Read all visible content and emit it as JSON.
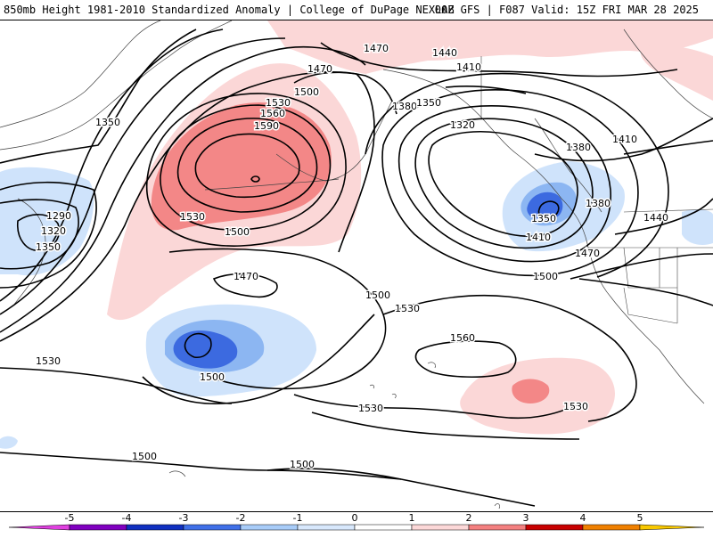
{
  "header": {
    "left_title": "850mb Height 1981-2010 Standardized Anomaly | College of DuPage NEXLAB",
    "right_title": "00Z GFS | F087 Valid: 15Z FRI MAR 28 2025"
  },
  "contour_labels": [
    {
      "id": "c1470a",
      "text": "1470"
    },
    {
      "id": "c1440a",
      "text": "1440"
    },
    {
      "id": "c1410a",
      "text": "1410"
    },
    {
      "id": "c1470b",
      "text": "1470"
    },
    {
      "id": "c1500a",
      "text": "1500"
    },
    {
      "id": "c1530a",
      "text": "1530"
    },
    {
      "id": "c1560a",
      "text": "1560"
    },
    {
      "id": "c1590a",
      "text": "1590"
    },
    {
      "id": "c1380a",
      "text": "1380"
    },
    {
      "id": "c1350a",
      "text": "1350"
    },
    {
      "id": "c1320a",
      "text": "1320"
    },
    {
      "id": "c1380b",
      "text": "1380"
    },
    {
      "id": "c1410b",
      "text": "1410"
    },
    {
      "id": "c1350b",
      "text": "1350"
    },
    {
      "id": "c1380c",
      "text": "1380"
    },
    {
      "id": "c1440b",
      "text": "1440"
    },
    {
      "id": "c1410c",
      "text": "1410"
    },
    {
      "id": "c1470c",
      "text": "1470"
    },
    {
      "id": "c1350c",
      "text": "1350"
    },
    {
      "id": "c1290a",
      "text": "1290"
    },
    {
      "id": "c1320b",
      "text": "1320"
    },
    {
      "id": "c1350d",
      "text": "1350"
    },
    {
      "id": "c1530b",
      "text": "1530"
    },
    {
      "id": "c1500b",
      "text": "1500"
    },
    {
      "id": "c1470d",
      "text": "1470"
    },
    {
      "id": "c1500c",
      "text": "1500"
    },
    {
      "id": "c1500d",
      "text": "1500"
    },
    {
      "id": "c1530c",
      "text": "1530"
    },
    {
      "id": "c1560b",
      "text": "1560"
    },
    {
      "id": "c1530d",
      "text": "1530"
    },
    {
      "id": "c1500e",
      "text": "1500"
    },
    {
      "id": "c1530e",
      "text": "1530"
    },
    {
      "id": "c1530f",
      "text": "1530"
    },
    {
      "id": "c1500f",
      "text": "1500"
    },
    {
      "id": "c1500g",
      "text": "1500"
    }
  ],
  "colorbar": {
    "ticks": [
      "-5",
      "-4",
      "-3",
      "-2",
      "-1",
      "0",
      "1",
      "2",
      "3",
      "4",
      "5"
    ],
    "colors": [
      "#e040e0",
      "#8000c0",
      "#1030c0",
      "#4070e8",
      "#a8ccf8",
      "#d8e8fc",
      "#ffffff",
      "#fcd8d8",
      "#f48080",
      "#c80000",
      "#f08000",
      "#f8c800"
    ]
  },
  "colors": {
    "neg1": "#cfe3fb",
    "neg2": "#8cb6f2",
    "neg3": "#3c6ae0",
    "pos1": "#fbd7d7",
    "pos2": "#f38787",
    "pos3": "#e84848"
  }
}
